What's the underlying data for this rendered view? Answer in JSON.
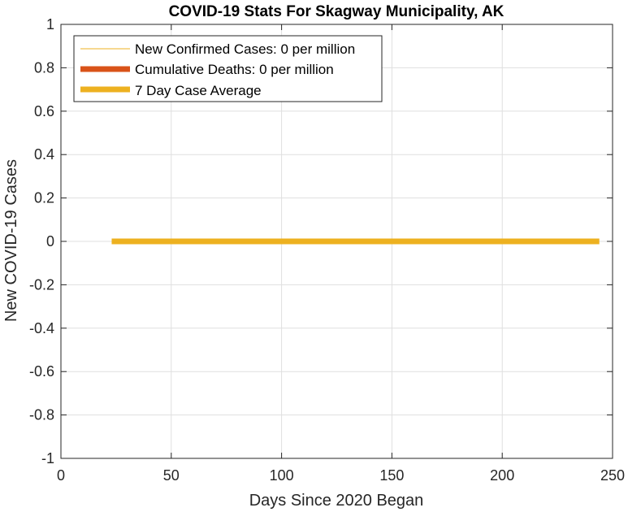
{
  "chart_data": {
    "type": "line",
    "title": "COVID-19 Stats For Skagway Municipality, AK",
    "xlabel": "Days Since 2020 Began",
    "ylabel": "New COVID-19 Cases",
    "xlim": [
      0,
      250
    ],
    "ylim": [
      -1,
      1
    ],
    "x_ticks": [
      0,
      50,
      100,
      150,
      200,
      250
    ],
    "y_ticks": [
      -1,
      -0.8,
      -0.6,
      -0.4,
      -0.2,
      0,
      0.2,
      0.4,
      0.6,
      0.8,
      1
    ],
    "grid": true,
    "legend_position": "top-left",
    "series": [
      {
        "name": "New Confirmed Cases: 0 per million",
        "color": "#EDB120",
        "style": "thin",
        "x": [],
        "y": []
      },
      {
        "name": "Cumulative Deaths: 0 per million",
        "color": "#D95319",
        "style": "thick",
        "x": [],
        "y": []
      },
      {
        "name": "7 Day Case Average",
        "color": "#EDB120",
        "style": "thick",
        "x": [
          23,
          244
        ],
        "y": [
          0,
          0
        ]
      }
    ]
  }
}
